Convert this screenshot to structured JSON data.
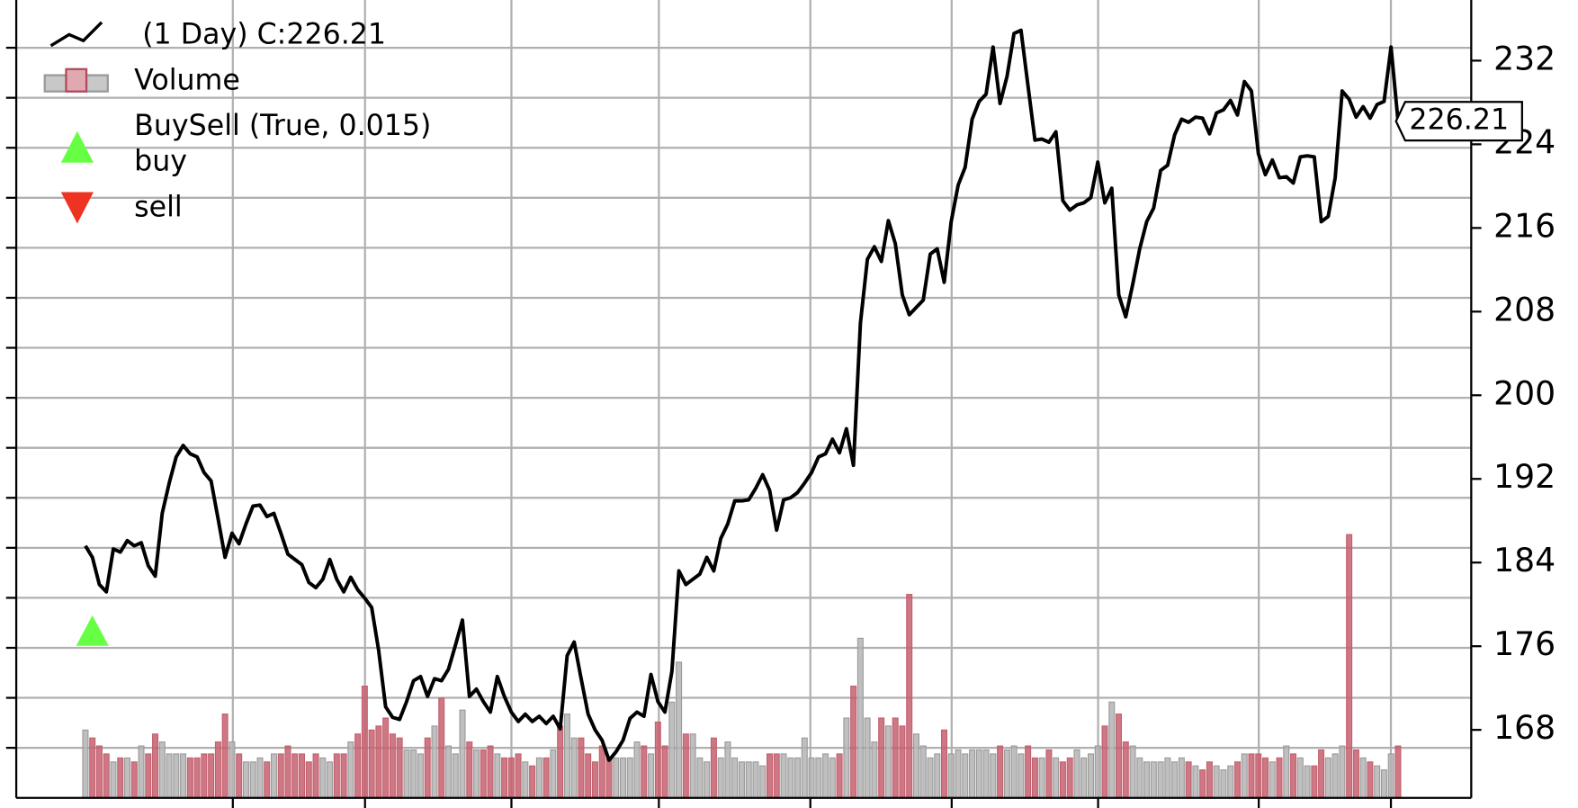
{
  "chart_data": {
    "type": "line",
    "series": [
      {
        "name": "(1 Day) C:226.21",
        "color": "#000000",
        "values": [
          185.6,
          184.5,
          181.9,
          181.2,
          185.3,
          185.0,
          186.1,
          185.6,
          185.9,
          183.7,
          182.7,
          188.7,
          191.6,
          194.1,
          195.2,
          194.4,
          194.1,
          192.6,
          191.8,
          188.2,
          184.5,
          186.8,
          185.8,
          187.7,
          189.4,
          189.5,
          188.4,
          188.7,
          186.8,
          184.8,
          184.3,
          183.8,
          182.1,
          181.6,
          182.4,
          184.3,
          182.4,
          181.2,
          182.6,
          181.4,
          180.6,
          179.7,
          175.6,
          170.2,
          169.2,
          169.0,
          170.7,
          172.7,
          173.1,
          171.2,
          172.9,
          172.7,
          173.8,
          176.1,
          178.5,
          171.2,
          171.9,
          170.7,
          169.7,
          173.1,
          171.2,
          169.7,
          168.8,
          169.5,
          168.8,
          169.3,
          168.6,
          169.3,
          168.1,
          175.1,
          176.4,
          172.9,
          169.5,
          168.0,
          167.0,
          165.1,
          165.9,
          167.0,
          169.1,
          169.7,
          169.3,
          173.3,
          170.7,
          169.7,
          173.6,
          183.2,
          181.9,
          182.4,
          182.9,
          184.5,
          183.2,
          186.3,
          187.7,
          189.9,
          189.9,
          190.0,
          191.1,
          192.4,
          190.9,
          187.1,
          190.0,
          190.2,
          190.7,
          191.6,
          192.6,
          194.1,
          194.4,
          195.8,
          194.5,
          196.8,
          193.3,
          206.9,
          213.0,
          214.2,
          212.8,
          216.7,
          214.5,
          209.6,
          207.7,
          208.4,
          209.1,
          213.5,
          214.0,
          210.8,
          216.6,
          220.1,
          221.8,
          226.4,
          228.1,
          228.8,
          233.3,
          227.9,
          230.5,
          234.6,
          234.9,
          229.6,
          224.4,
          224.5,
          224.2,
          225.2,
          218.6,
          217.7,
          218.2,
          218.4,
          218.9,
          222.3,
          218.4,
          219.8,
          209.6,
          207.5,
          210.6,
          214.0,
          216.6,
          217.9,
          221.5,
          222.0,
          224.9,
          226.4,
          226.1,
          226.6,
          226.5,
          225.0,
          227.0,
          227.3,
          228.2,
          226.8,
          230.0,
          229.1,
          223.1,
          221.1,
          222.5,
          220.8,
          220.9,
          220.3,
          222.8,
          222.9,
          222.8,
          216.6,
          217.1,
          220.8,
          229.1,
          228.3,
          226.6,
          227.6,
          226.5,
          227.8,
          228.1,
          233.3,
          226.21
        ]
      },
      {
        "name": "Volume",
        "type": "bar",
        "axis": "y2",
        "up_color": "#b4b4b4",
        "down_color": "#c4606e",
        "values": [
          8.5,
          7.5,
          6.5,
          5.5,
          4.5,
          5,
          5,
          4.5,
          6.5,
          5.5,
          8,
          7,
          5.5,
          5.5,
          5.5,
          5,
          5,
          5.5,
          5.5,
          7,
          10.5,
          7,
          5.5,
          4.5,
          4.5,
          5,
          4.5,
          5.5,
          5.5,
          6.5,
          5.5,
          5.5,
          4.5,
          5.5,
          5,
          4.5,
          5.5,
          5.5,
          7,
          8,
          14,
          8.5,
          9,
          10,
          8,
          7.5,
          6,
          6,
          5.5,
          7.5,
          9,
          12.5,
          6.5,
          5.5,
          11,
          7,
          6,
          6,
          6.5,
          5.5,
          5,
          5,
          5.5,
          4.5,
          4,
          5,
          5,
          6,
          9,
          10.5,
          7.5,
          7.5,
          5.5,
          4.5,
          6.5,
          5,
          5,
          5,
          5,
          7,
          6.5,
          5.5,
          9.5,
          6.5,
          12,
          17,
          8,
          8,
          5,
          4.5,
          7.5,
          5,
          7,
          5,
          4.5,
          4.5,
          4.5,
          4,
          5.5,
          5.5,
          5.5,
          5,
          5,
          7.5,
          5,
          5,
          5.5,
          5,
          5.5,
          10,
          14,
          20,
          10,
          7,
          10,
          9,
          10,
          9,
          25.5,
          8,
          6.5,
          5,
          5.5,
          8.5,
          5.5,
          6,
          5.5,
          6,
          6,
          6,
          5.5,
          6.5,
          6,
          6.5,
          5.5,
          6.5,
          5,
          5,
          6,
          5,
          4.5,
          5,
          6,
          5,
          5.5,
          6.5,
          9,
          12,
          10.5,
          7,
          6.5,
          5,
          4.5,
          4.5,
          4.5,
          5,
          4.5,
          5,
          4.5,
          4,
          3.5,
          4.5,
          4,
          3.5,
          4,
          4.5,
          5.5,
          5.5,
          5.5,
          5,
          4.5,
          5,
          6.5,
          5.5,
          5,
          4,
          4,
          6,
          5,
          5.5,
          6.5,
          33,
          6,
          5,
          4.5,
          4,
          3.5,
          5.5,
          6.5
        ]
      }
    ],
    "ylim": [
      161.5,
      237.8
    ],
    "yticks": [
      168,
      176,
      184,
      192,
      200,
      208,
      216,
      224,
      232
    ],
    "y2lim": [
      0,
      100
    ],
    "grid": true,
    "indicator": {
      "name": "BuySell (True, 0.015)",
      "buy": {
        "name": "buy",
        "color": "#66ff44",
        "x": [
          1
        ],
        "y": [
          177.4
        ]
      },
      "sell": {
        "name": "sell",
        "color": "#ee3322",
        "x": [],
        "y": []
      }
    }
  }
}
